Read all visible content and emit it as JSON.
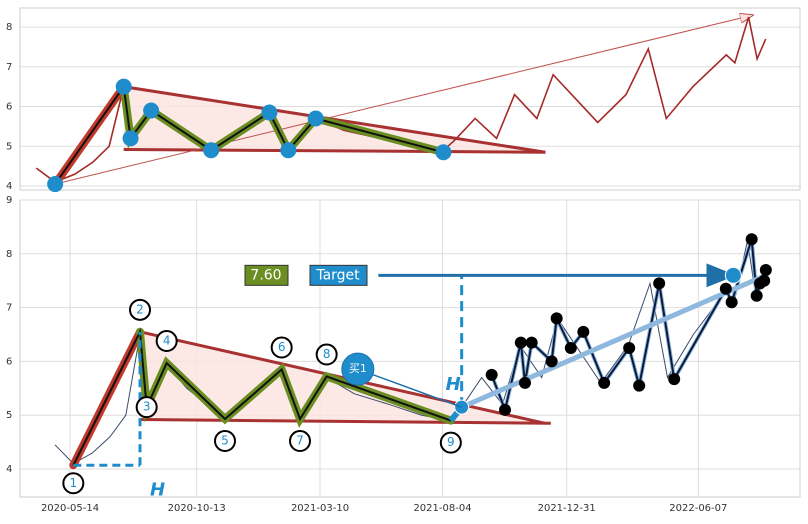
{
  "chart_data": [
    {
      "type": "line",
      "xlim": [
        "2020-04-07",
        "2022-10-04"
      ],
      "ylim": [
        3.9,
        8.48
      ],
      "yticks": [
        4,
        5,
        6,
        7,
        8
      ],
      "grid": true,
      "series": [
        {
          "color": "#a52a2a",
          "x": [
            "2020-04-26",
            "2020-05-18",
            "2020-06-10",
            "2020-07-01",
            "2020-07-20",
            "2020-08-06",
            "2020-08-14",
            "2020-09-07",
            "2020-10-01",
            "2020-11-16",
            "2020-12-15",
            "2021-01-23",
            "2021-02-14",
            "2021-03-18",
            "2021-04-20",
            "2021-06-01",
            "2021-07-10",
            "2021-08-14",
            "2021-08-27",
            "2021-09-20",
            "2021-10-15",
            "2021-11-05",
            "2021-12-01",
            "2021-12-20",
            "2022-01-15",
            "2022-02-10",
            "2022-03-15",
            "2022-04-10",
            "2022-05-01",
            "2022-06-01",
            "2022-07-10",
            "2022-07-20",
            "2022-08-05",
            "2022-08-15",
            "2022-08-25"
          ],
          "values": [
            4.45,
            4.1,
            4.3,
            4.6,
            5.0,
            6.5,
            5.2,
            5.95,
            5.5,
            4.95,
            5.4,
            5.85,
            4.95,
            5.7,
            5.4,
            5.2,
            5.0,
            4.9,
            5.15,
            5.7,
            5.2,
            6.3,
            5.7,
            6.8,
            6.2,
            5.6,
            6.3,
            7.45,
            5.7,
            6.5,
            7.3,
            7.1,
            8.25,
            7.2,
            7.7
          ]
        }
      ],
      "pattern": {
        "color": "#1f8ccc",
        "x": [
          "2020-05-18",
          "2020-08-06",
          "2020-08-14",
          "2020-09-07",
          "2020-11-16",
          "2021-01-23",
          "2021-02-14",
          "2021-03-18",
          "2021-08-14"
        ],
        "values": [
          4.05,
          6.5,
          5.2,
          5.9,
          4.9,
          5.85,
          4.9,
          5.7,
          4.85
        ]
      },
      "triangle": {
        "upper": {
          "x": [
            "2020-08-06",
            "2021-12-11"
          ],
          "values": [
            6.5,
            4.85
          ]
        },
        "lower": {
          "x": [
            "2020-08-06",
            "2021-12-11"
          ],
          "values": [
            4.92,
            4.85
          ]
        }
      },
      "arrow": {
        "x": [
          "2020-05-18",
          "2022-08-10"
        ],
        "values": [
          4.05,
          8.3
        ]
      }
    },
    {
      "type": "line",
      "xlim": [
        "2020-03-15",
        "2022-10-07"
      ],
      "ylim": [
        3.48,
        9.0
      ],
      "yticks": [
        4,
        5,
        6,
        7,
        8,
        9
      ],
      "grid": true,
      "xticks": [
        "2020-05-14",
        "2020-10-13",
        "2021-03-10",
        "2021-08-04",
        "2021-12-31",
        "2022-06-07"
      ],
      "series": [
        {
          "color": "#3a4a6b",
          "x": [
            "2020-04-26",
            "2020-05-18",
            "2020-06-10",
            "2020-07-01",
            "2020-07-20",
            "2020-08-06",
            "2020-08-14",
            "2020-09-07",
            "2020-10-01",
            "2020-11-16",
            "2020-12-15",
            "2021-01-23",
            "2021-02-14",
            "2021-03-18",
            "2021-04-20",
            "2021-06-01",
            "2021-07-10",
            "2021-08-14",
            "2021-08-27",
            "2021-09-20",
            "2021-10-15",
            "2021-11-05",
            "2021-12-01",
            "2021-12-20",
            "2022-01-15",
            "2022-02-10",
            "2022-03-15",
            "2022-04-10",
            "2022-05-01",
            "2022-06-01",
            "2022-07-10",
            "2022-07-20",
            "2022-08-05",
            "2022-08-15",
            "2022-08-25"
          ],
          "values": [
            4.45,
            4.1,
            4.3,
            4.6,
            5.0,
            6.5,
            5.2,
            5.95,
            5.5,
            4.95,
            5.4,
            5.85,
            4.95,
            5.7,
            5.4,
            5.2,
            5.0,
            4.9,
            5.15,
            5.7,
            5.2,
            6.3,
            5.7,
            6.8,
            6.2,
            5.6,
            6.3,
            7.45,
            5.7,
            6.5,
            7.3,
            7.1,
            8.25,
            7.2,
            7.7
          ]
        }
      ],
      "pattern": {
        "x": [
          "2020-05-18",
          "2020-08-06",
          "2020-08-14",
          "2020-09-07",
          "2020-11-16",
          "2021-01-23",
          "2021-02-14",
          "2021-03-18",
          "2021-08-14"
        ],
        "values": [
          4.07,
          6.55,
          5.15,
          5.97,
          4.93,
          5.85,
          4.93,
          5.72,
          4.9
        ],
        "labels": [
          "1",
          "2",
          "3",
          "4",
          "5",
          "6",
          "7",
          "8",
          "9"
        ]
      },
      "triangle": {
        "upper": {
          "x": [
            "2020-08-06",
            "2021-12-05"
          ],
          "values": [
            6.55,
            4.85
          ]
        },
        "lower": {
          "x": [
            "2020-08-06",
            "2021-12-12"
          ],
          "values": [
            4.92,
            4.85
          ]
        }
      },
      "breakout": {
        "x": [
          "2021-08-14",
          "2021-08-27"
        ],
        "values": [
          4.9,
          5.15
        ],
        "label": "买1"
      },
      "swings": {
        "x": [
          "2021-10-02",
          "2021-10-18",
          "2021-11-06",
          "2021-11-11",
          "2021-11-19",
          "2021-12-13",
          "2021-12-19",
          "2022-01-05",
          "2022-01-20",
          "2022-02-14",
          "2022-03-16",
          "2022-03-28",
          "2022-04-21",
          "2022-05-09",
          "2022-07-10",
          "2022-07-17",
          "2022-08-10",
          "2022-08-16",
          "2022-08-20",
          "2022-08-25",
          "2022-08-27"
        ],
        "values": [
          5.75,
          5.1,
          6.35,
          5.6,
          6.35,
          6.0,
          6.8,
          6.25,
          6.55,
          5.6,
          6.25,
          5.55,
          7.45,
          5.67,
          7.35,
          7.1,
          8.27,
          7.22,
          7.45,
          7.5,
          7.7
        ]
      },
      "target": {
        "value": 7.6,
        "label": "7.60",
        "name": "Target",
        "x": [
          "2021-05-19",
          "2022-07-19"
        ]
      },
      "h_label": "H"
    }
  ]
}
